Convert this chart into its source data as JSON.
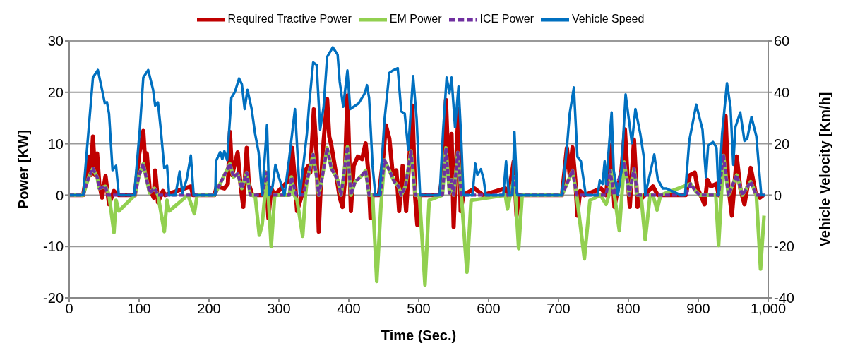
{
  "chart_data": {
    "type": "line",
    "xlabel": "Time (Sec.)",
    "ylabel": "Power [KW]",
    "y2label": "Vehicle Velocity [Km/h]",
    "xlim": [
      0,
      1000
    ],
    "xticks": [
      0,
      100,
      200,
      300,
      400,
      500,
      600,
      700,
      800,
      900,
      {
        "value": 1000,
        "label": "1,000"
      }
    ],
    "ylim": [
      -20,
      30
    ],
    "yticks": [
      -20,
      -10,
      0,
      10,
      20,
      30
    ],
    "y2lim": [
      -40,
      60
    ],
    "y2ticks": [
      -40,
      -20,
      0,
      20,
      40,
      60
    ],
    "grid": "y",
    "legend": "top",
    "marker": "none",
    "series": [
      {
        "name": "Required Tractive Power",
        "color": "#c00000",
        "line_style": "solid",
        "x": [
          0,
          20,
          29,
          31,
          34,
          37,
          40,
          43,
          47,
          52,
          57,
          64,
          67,
          71,
          94,
          100,
          106,
          109,
          111,
          115,
          121,
          123,
          127,
          134,
          137,
          154,
          174,
          177,
          208,
          211,
          222,
          227,
          230,
          233,
          241,
          245,
          249,
          254,
          257,
          262,
          276,
          281,
          285,
          289,
          294,
          315,
          319,
          322,
          326,
          333,
          338,
          342,
          345,
          350,
          354,
          357,
          360,
          364,
          369,
          372,
          375,
          382,
          387,
          391,
          394,
          398,
          403,
          407,
          413,
          419,
          424,
          428,
          431,
          434,
          443,
          449,
          453,
          458,
          463,
          468,
          472,
          477,
          482,
          486,
          491,
          495,
          498,
          502,
          530,
          535,
          539,
          543,
          547,
          550,
          553,
          557,
          560,
          564,
          580,
          592,
          624,
          628,
          636,
          640,
          644,
          705,
          712,
          716,
          720,
          724,
          727,
          731,
          737,
          761,
          768,
          775,
          780,
          785,
          790,
          795,
          799,
          802,
          808,
          813,
          817,
          820,
          835,
          842,
          882,
          888,
          895,
          899,
          909,
          913,
          918,
          926,
          929,
          934,
          939,
          943,
          948,
          955,
          960,
          966,
          975,
          982,
          988,
          993
        ],
        "values": [
          0,
          0,
          7.5,
          3.9,
          11.4,
          3.9,
          8.1,
          2.2,
          -0.5,
          3.7,
          -1.8,
          0.8,
          0.4,
          0,
          0,
          7.9,
          12.5,
          5.7,
          8.1,
          1.3,
          -0.5,
          4.8,
          -1.4,
          0.8,
          0,
          0.8,
          1.7,
          0,
          0,
          1.7,
          1.3,
          2.2,
          12.3,
          3.9,
          8.3,
          2.2,
          -2.3,
          9.2,
          2.2,
          0,
          0,
          4.4,
          -4.5,
          1.3,
          0,
          3,
          9.2,
          4.4,
          -3.1,
          0,
          4.8,
          5.7,
          4.4,
          16.7,
          7.9,
          -7.1,
          2.2,
          10.6,
          18.7,
          11.4,
          9.7,
          3.9,
          -0.5,
          -2.3,
          2.2,
          19.4,
          -3.1,
          5.7,
          7.5,
          7,
          10.1,
          4.4,
          -4.5,
          0,
          0,
          7,
          13.6,
          11,
          3.9,
          4.8,
          -3.1,
          5.7,
          -3.1,
          5.7,
          17.4,
          -0.5,
          -5.8,
          0,
          0,
          4.8,
          18.5,
          3.9,
          11.9,
          -6.2,
          4.8,
          16.7,
          -3.1,
          0,
          1.3,
          0,
          1.3,
          -0.5,
          6.6,
          -4,
          0,
          0,
          9.2,
          3.9,
          9.3,
          3,
          -4,
          0.8,
          0,
          1.3,
          0,
          9.7,
          -2.3,
          1.3,
          4.8,
          12.8,
          3,
          -2.3,
          10.8,
          -2.3,
          0,
          -0.5,
          1.7,
          0,
          0,
          3.9,
          4.4,
          1.3,
          -1.8,
          3,
          1.7,
          2.2,
          0,
          3.9,
          15.4,
          1.7,
          -4,
          7.5,
          1.3,
          -1.8,
          5.3,
          0.4,
          -0.5,
          0
        ]
      },
      {
        "name": "EM Power",
        "color": "#92d050",
        "line_style": "solid",
        "x": [
          0,
          20,
          28,
          34,
          40,
          43,
          52,
          57,
          64,
          67,
          71,
          94,
          100,
          106,
          110,
          115,
          122,
          127,
          136,
          140,
          143,
          170,
          179,
          183,
          208,
          230,
          235,
          241,
          247,
          254,
          259,
          266,
          272,
          276,
          280,
          283,
          289,
          294,
          315,
          318,
          322,
          326,
          334,
          338,
          340,
          349,
          354,
          357,
          362,
          369,
          375,
          384,
          389,
          398,
          403,
          409,
          418,
          424,
          429,
          434,
          440,
          446,
          451,
          458,
          465,
          471,
          475,
          481,
          489,
          495,
          501,
          509,
          515,
          534,
          539,
          544,
          547,
          550,
          556,
          561,
          569,
          575,
          624,
          627,
          631,
          637,
          643,
          648,
          705,
          712,
          720,
          726,
          737,
          745,
          760,
          768,
          772,
          775,
          780,
          787,
          794,
          799,
          801,
          808,
          813,
          818,
          824,
          831,
          835,
          841,
          846,
          889,
          896,
          902,
          925,
          929,
          933,
          936,
          943,
          955,
          963,
          975,
          983,
          989,
          994
        ],
        "values": [
          0,
          0,
          3.5,
          5.2,
          3.5,
          1.3,
          1.7,
          0,
          -7.3,
          -1,
          -3.1,
          0,
          3.9,
          6.1,
          3.5,
          0.4,
          1.3,
          0,
          -7.1,
          -1,
          -3.1,
          0,
          -3.6,
          0,
          0,
          6.1,
          3.5,
          4.2,
          1.3,
          4.4,
          0,
          0,
          -7.8,
          -5.8,
          0,
          4.4,
          -10,
          0,
          0,
          3.5,
          0,
          -1,
          -8,
          0,
          2.6,
          7.9,
          3.5,
          0,
          3.5,
          9.2,
          5.2,
          3,
          0,
          9.4,
          0,
          2.6,
          3.7,
          4.8,
          0,
          0,
          -16.8,
          -2,
          6.8,
          4.8,
          2.6,
          1.7,
          0,
          1.7,
          8.6,
          0,
          0,
          -17.5,
          -1,
          0,
          9.2,
          0.4,
          3,
          0,
          8.3,
          0,
          -15,
          -1,
          0,
          -2.7,
          0,
          3.5,
          -10.4,
          0,
          0,
          2.2,
          4.8,
          0,
          -12.4,
          -1,
          0,
          -1.8,
          0,
          4.8,
          0,
          -6.9,
          6.4,
          2.2,
          0,
          5.2,
          0,
          0,
          -8.7,
          0,
          0,
          -2.9,
          0,
          2.2,
          0.8,
          0,
          0,
          -9.8,
          0,
          7.7,
          0,
          3.9,
          0,
          2.6,
          0,
          -14.4,
          -4
        ]
      },
      {
        "name": "ICE Power",
        "color": "#7030a0",
        "line_style": "dashed",
        "x": [
          0,
          20,
          28,
          34,
          40,
          43,
          52,
          55,
          94,
          100,
          106,
          110,
          115,
          122,
          127,
          208,
          230,
          235,
          241,
          247,
          254,
          259,
          276,
          283,
          288,
          315,
          318,
          325,
          334,
          340,
          349,
          354,
          357,
          362,
          369,
          375,
          384,
          389,
          398,
          403,
          409,
          418,
          424,
          429,
          445,
          451,
          458,
          465,
          471,
          475,
          481,
          489,
          495,
          534,
          539,
          544,
          547,
          550,
          556,
          561,
          633,
          637,
          641,
          705,
          712,
          720,
          726,
          768,
          774,
          779,
          794,
          799,
          801,
          808,
          813,
          882,
          889,
          896,
          902,
          929,
          936,
          943,
          955,
          963,
          975,
          983,
          995
        ],
        "values": [
          0,
          0,
          3.5,
          5.2,
          3.5,
          1.3,
          1.7,
          0,
          0,
          3.9,
          6.1,
          3.5,
          0.4,
          1.3,
          0,
          0,
          6.1,
          3.5,
          4.2,
          1.3,
          4.4,
          0,
          0,
          4.4,
          0,
          0,
          3.5,
          0,
          0,
          2.6,
          7.9,
          3.5,
          0,
          3.5,
          9.2,
          5.2,
          3,
          0,
          9.4,
          0,
          2.6,
          3.7,
          4.8,
          0,
          0,
          6.8,
          4.8,
          2.6,
          1.7,
          0,
          1.7,
          8.6,
          0,
          0,
          9.2,
          0.4,
          3,
          0,
          8.3,
          0,
          0,
          3.5,
          0,
          0,
          2.2,
          4.8,
          0,
          0,
          4.8,
          0,
          6.4,
          2.2,
          0,
          5.2,
          0,
          0,
          2.2,
          0.8,
          0,
          0,
          7.7,
          0,
          3.9,
          0,
          2.6,
          0,
          0
        ]
      },
      {
        "name": "Vehicle Speed",
        "color": "#0070c0",
        "line_style": "solid",
        "axis": "y2",
        "x": [
          0,
          20,
          34,
          41,
          46,
          51,
          54,
          57,
          62,
          67,
          71,
          93,
          101,
          106,
          113,
          120,
          123,
          127,
          131,
          136,
          140,
          143,
          152,
          158,
          162,
          168,
          174,
          178,
          209,
          210,
          216,
          219,
          222,
          226,
          232,
          237,
          243,
          247,
          251,
          255,
          261,
          266,
          271,
          276,
          283,
          286,
          291,
          295,
          300,
          308,
          315,
          323,
          330,
          340,
          343,
          349,
          354,
          359,
          364,
          369,
          377,
          384,
          387,
          392,
          398,
          402,
          407,
          414,
          423,
          426,
          429,
          434,
          438,
          444,
          451,
          458,
          463,
          470,
          475,
          480,
          485,
          492,
          497,
          502,
          530,
          535,
          540,
          544,
          547,
          552,
          557,
          561,
          564,
          577,
          581,
          584,
          589,
          593,
          596,
          621,
          625,
          629,
          634,
          637,
          641,
          705,
          712,
          716,
          722,
          727,
          732,
          739,
          756,
          759,
          763,
          766,
          768,
          776,
          779,
          785,
          790,
          796,
          805,
          810,
          817,
          822,
          824,
          832,
          837,
          842,
          849,
          854,
          875,
          881,
          887,
          897,
          906,
          911,
          914,
          921,
          926,
          929,
          934,
          941,
          946,
          950,
          953,
          960,
          966,
          970,
          976,
          983,
          990,
          995
        ],
        "values": [
          0,
          0,
          45.8,
          48.7,
          42.3,
          35.7,
          36.2,
          31.7,
          9.7,
          11.4,
          0,
          0,
          25.6,
          45.8,
          48.7,
          41,
          34.8,
          36.1,
          25.6,
          10.5,
          11.4,
          0,
          0,
          9.2,
          0.8,
          6.1,
          15.4,
          0,
          0,
          13.2,
          16.7,
          14,
          17.1,
          13.6,
          37.9,
          40.1,
          45.4,
          43.2,
          33.5,
          41,
          33.5,
          23.8,
          16.7,
          0,
          27.3,
          0,
          3.4,
          11.8,
          7,
          0,
          14.9,
          33.5,
          0,
          23.8,
          34.4,
          51.6,
          50.7,
          25.5,
          34.4,
          53.8,
          57.5,
          54.7,
          44.1,
          34.4,
          48.5,
          33.5,
          34.4,
          35.7,
          39.7,
          42.8,
          37.9,
          11.4,
          0,
          0,
          29.1,
          47.6,
          48.5,
          49.4,
          32.6,
          31.7,
          17.6,
          46.3,
          29.9,
          0,
          0,
          25.5,
          45.8,
          39.7,
          45.8,
          26.4,
          42.3,
          21.1,
          0,
          0,
          12.3,
          7.9,
          10.1,
          6.1,
          0,
          0,
          13.2,
          0,
          0,
          24.6,
          0,
          0,
          18.5,
          31.7,
          41.9,
          14.9,
          13.2,
          0,
          0,
          5.7,
          4.3,
          13.2,
          4.3,
          32.2,
          9.6,
          0,
          9.6,
          39.2,
          20.2,
          33.5,
          23.8,
          14.9,
          0,
          9.6,
          15.8,
          6.1,
          2.6,
          2.6,
          0,
          0,
          21.1,
          35.2,
          25.5,
          7,
          19.3,
          20.7,
          18.5,
          0,
          23.8,
          43.6,
          34.4,
          11.8,
          26.4,
          32.2,
          21.1,
          22,
          30.4,
          22.9,
          0,
          0
        ]
      }
    ]
  }
}
